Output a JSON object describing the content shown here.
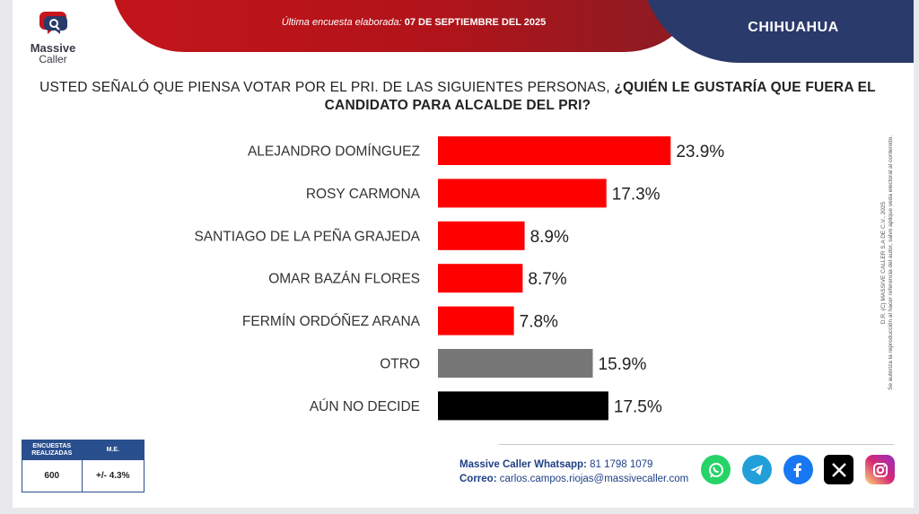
{
  "header": {
    "survey_date_label": "Última encuesta elaborada:",
    "survey_date_value": "07 DE SEPTIEMBRE DEL 2025",
    "region": "CHIHUAHUA"
  },
  "brand": {
    "name_line1": "Massive",
    "name_line2": "Caller"
  },
  "question": {
    "normal": "USTED SEÑALÓ QUE PIENSA VOTAR POR EL PRI. DE LAS SIGUIENTES PERSONAS,",
    "bold": "¿QUIÉN LE GUSTARÍA QUE FUERA EL CANDIDATO PARA ALCALDE DEL PRI?"
  },
  "chart_data": {
    "type": "bar",
    "orientation": "horizontal",
    "categories": [
      "ALEJANDRO DOMÍNGUEZ",
      "ROSY CARMONA",
      "SANTIAGO DE LA PEÑA GRAJEDA",
      "OMAR BAZÁN FLORES",
      "FERMÍN ORDÓÑEZ ARANA",
      "OTRO",
      "AÚN NO DECIDE"
    ],
    "values": [
      23.9,
      17.3,
      8.9,
      8.7,
      7.8,
      15.9,
      17.5
    ],
    "value_labels": [
      "23.9%",
      "17.3%",
      "8.9%",
      "8.7%",
      "7.8%",
      "15.9%",
      "17.5%"
    ],
    "colors": [
      "#ff0000",
      "#ff0000",
      "#ff0000",
      "#ff0000",
      "#ff0000",
      "#777777",
      "#000000"
    ],
    "title": "",
    "xlabel": "",
    "ylabel": "",
    "xlim": [
      0,
      40
    ],
    "grid": false,
    "legend": "none"
  },
  "copyright": {
    "line1": "D.R. (C) MASSIVE CALLER S.A DE C.V., 2025",
    "line2": "Se autoriza la reproducción al hacer referencia del autor, salvo aplique veda electoral al contenido."
  },
  "stats": {
    "col1_header": "ENCUESTAS REALIZADAS",
    "col2_header": "M.E.",
    "col1_value": "600",
    "col2_value": "+/- 4.3%"
  },
  "contact": {
    "whatsapp_label": "Massive Caller Whatsapp:",
    "whatsapp_number": "81 1798 1079",
    "email_label": "Correo:",
    "email": "carlos.campos.riojas@massivecaller.com"
  },
  "socials": [
    {
      "icon": "whatsapp-icon",
      "color": "#25d366"
    },
    {
      "icon": "telegram-icon",
      "color": "#229ed9"
    },
    {
      "icon": "facebook-icon",
      "color": "#1877f2"
    },
    {
      "icon": "x-icon",
      "color": "#000000"
    },
    {
      "icon": "instagram-icon",
      "color": "#d62976"
    }
  ]
}
